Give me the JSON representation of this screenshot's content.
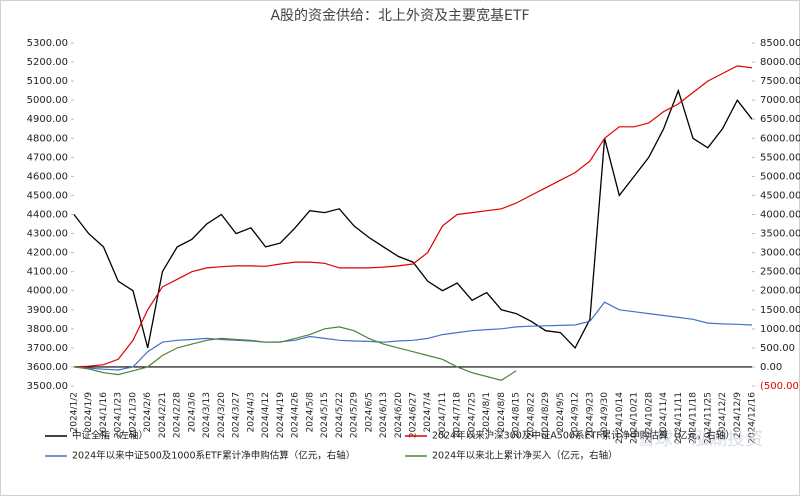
{
  "chart_data": {
    "type": "line",
    "title": "A股的资金供给：北上外资及主要宽基ETF",
    "watermark": "雪球：泓湖投资",
    "categories": [
      "2024/1/2",
      "2024/1/9",
      "2024/1/16",
      "2024/1/23",
      "2024/1/30",
      "2024/2/6",
      "2024/2/21",
      "2024/2/28",
      "2024/3/6",
      "2024/3/13",
      "2024/3/20",
      "2024/3/27",
      "2024/4/3",
      "2024/4/12",
      "2024/4/19",
      "2024/4/26",
      "2024/5/8",
      "2024/5/15",
      "2024/5/22",
      "2024/5/29",
      "2024/6/5",
      "2024/6/13",
      "2024/6/20",
      "2024/6/27",
      "2024/7/4",
      "2024/7/11",
      "2024/7/18",
      "2024/7/25",
      "2024/8/1",
      "2024/8/8",
      "2024/8/15",
      "2024/8/22",
      "2024/8/29",
      "2024/9/5",
      "2024/9/12",
      "2024/9/23",
      "2024/9/30",
      "2024/10/14",
      "2024/10/21",
      "2024/10/28",
      "2024/11/4",
      "2024/11/11",
      "2024/11/18",
      "2024/11/25",
      "2024/12/2",
      "2024/12/9",
      "2024/12/16"
    ],
    "series": [
      {
        "name": "中证全指（左轴）",
        "color": "#000000",
        "axis": "y",
        "values": [
          4400,
          4300,
          4230,
          4050,
          4000,
          3700,
          4100,
          4230,
          4270,
          4350,
          4400,
          4300,
          4330,
          4230,
          4250,
          4330,
          4420,
          4410,
          4430,
          4340,
          4280,
          4230,
          4180,
          4150,
          4050,
          4000,
          4040,
          3950,
          3990,
          3900,
          3880,
          3840,
          3790,
          3780,
          3700,
          3850,
          4800,
          4500,
          4600,
          4700,
          4850,
          5050,
          4800,
          4750,
          4850,
          5000,
          4900
        ]
      },
      {
        "name": "2024年以来沪深300及中证A500系ETF累计净申购估算（亿元，右轴）",
        "color": "#e00000",
        "axis": "y2",
        "values": [
          0,
          20,
          60,
          200,
          700,
          1500,
          2100,
          2300,
          2500,
          2600,
          2630,
          2650,
          2650,
          2640,
          2700,
          2750,
          2750,
          2720,
          2600,
          2600,
          2600,
          2620,
          2650,
          2700,
          3000,
          3700,
          4000,
          4050,
          4100,
          4150,
          4300,
          4500,
          4700,
          4900,
          5100,
          5400,
          6000,
          6300,
          6300,
          6400,
          6700,
          6900,
          7200,
          7500,
          7700,
          7900,
          7850
        ]
      },
      {
        "name": "2024年以来中证500及1000系ETF累计净申购估算（亿元，右轴）",
        "color": "#4472c4",
        "axis": "y2",
        "values": [
          0,
          -30,
          -60,
          -80,
          0,
          400,
          650,
          700,
          720,
          750,
          720,
          700,
          680,
          650,
          660,
          700,
          800,
          750,
          700,
          680,
          670,
          650,
          680,
          700,
          750,
          850,
          900,
          950,
          980,
          1000,
          1050,
          1070,
          1080,
          1090,
          1100,
          1200,
          1700,
          1500,
          1450,
          1400,
          1350,
          1300,
          1250,
          1150,
          1130,
          1120,
          1100
        ]
      },
      {
        "name": "2024年以来北上累计净买入（亿元，右轴）",
        "color": "#548235",
        "axis": "y2",
        "values": [
          0,
          -50,
          -150,
          -200,
          -100,
          0,
          300,
          500,
          600,
          700,
          750,
          720,
          700,
          650,
          650,
          750,
          850,
          1000,
          1050,
          950,
          750,
          600,
          500,
          400,
          300,
          200,
          0,
          -150,
          -250,
          -350,
          -100,
          null,
          null,
          null,
          null,
          null,
          null,
          null,
          null,
          null,
          null,
          null,
          null,
          null,
          null,
          null,
          null
        ]
      }
    ],
    "ylim": [
      3500,
      5300
    ],
    "yticks": [
      {
        "value": 3500,
        "label": "3500.00"
      },
      {
        "value": 3600,
        "label": "3600.00"
      },
      {
        "value": 3700,
        "label": "3700.00"
      },
      {
        "value": 3800,
        "label": "3800.00"
      },
      {
        "value": 3900,
        "label": "3900.00"
      },
      {
        "value": 4000,
        "label": "4000.00"
      },
      {
        "value": 4100,
        "label": "4100.00"
      },
      {
        "value": 4200,
        "label": "4200.00"
      },
      {
        "value": 4300,
        "label": "4300.00"
      },
      {
        "value": 4400,
        "label": "4400.00"
      },
      {
        "value": 4500,
        "label": "4500.00"
      },
      {
        "value": 4600,
        "label": "4600.00"
      },
      {
        "value": 4700,
        "label": "4700.00"
      },
      {
        "value": 4800,
        "label": "4800.00"
      },
      {
        "value": 4900,
        "label": "4900.00"
      },
      {
        "value": 5000,
        "label": "5000.00"
      },
      {
        "value": 5100,
        "label": "5100.00"
      },
      {
        "value": 5200,
        "label": "5200.00"
      },
      {
        "value": 5300,
        "label": "5300.00"
      }
    ],
    "y2lim": [
      -500,
      8500
    ],
    "y2ticks": [
      {
        "value": -500,
        "label": "(500.00)"
      },
      {
        "value": 0,
        "label": "0.00"
      },
      {
        "value": 500,
        "label": "500.00"
      },
      {
        "value": 1000,
        "label": "1000.00"
      },
      {
        "value": 1500,
        "label": "1500.00"
      },
      {
        "value": 2000,
        "label": "2000.00"
      },
      {
        "value": 2500,
        "label": "2500.00"
      },
      {
        "value": 3000,
        "label": "3000.00"
      },
      {
        "value": 3500,
        "label": "3500.00"
      },
      {
        "value": 4000,
        "label": "4000.00"
      },
      {
        "value": 4500,
        "label": "4500.00"
      },
      {
        "value": 5000,
        "label": "5000.00"
      },
      {
        "value": 5500,
        "label": "5500.00"
      },
      {
        "value": 6000,
        "label": "6000.00"
      },
      {
        "value": 6500,
        "label": "6500.00"
      },
      {
        "value": 7000,
        "label": "7000.00"
      },
      {
        "value": 7500,
        "label": "7500.00"
      },
      {
        "value": 8000,
        "label": "8000.00"
      },
      {
        "value": 8500,
        "label": "8500.00"
      }
    ],
    "negative_tick_color": "#e00000",
    "grid": false,
    "legend": "bottom"
  }
}
